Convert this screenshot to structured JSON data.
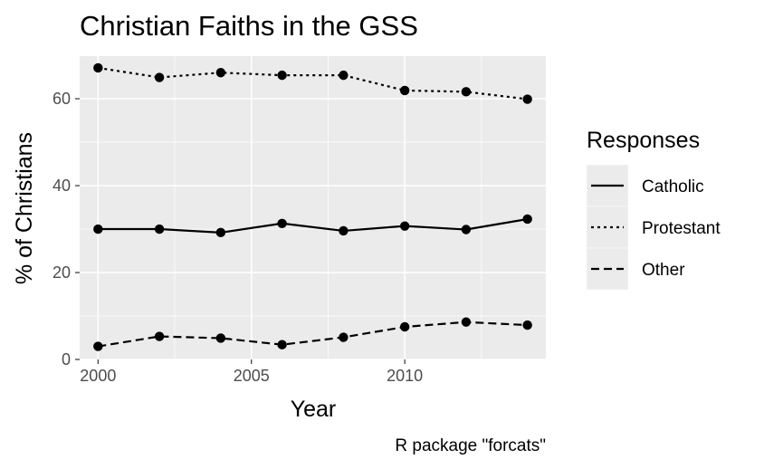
{
  "chart_data": {
    "type": "line",
    "title": "Christian Faiths in the GSS",
    "xlabel": "Year",
    "ylabel": "% of Christians",
    "caption": "R package \"forcats\"",
    "x": [
      2000,
      2002,
      2004,
      2006,
      2008,
      2010,
      2012,
      2014
    ],
    "xlim": [
      1999.4,
      2014.6
    ],
    "ylim": [
      0,
      69.8
    ],
    "x_ticks": [
      2000,
      2005,
      2010
    ],
    "x_minor": [
      2002.5,
      2007.5,
      2012.5
    ],
    "y_ticks": [
      0,
      20,
      40,
      60
    ],
    "y_minor": [
      10,
      30,
      50
    ],
    "grid": true,
    "legend": {
      "title": "Responses",
      "position": "right"
    },
    "series": [
      {
        "name": "Catholic",
        "linestyle": "solid",
        "values": [
          30.0,
          30.0,
          29.2,
          31.3,
          29.6,
          30.7,
          29.9,
          32.3
        ]
      },
      {
        "name": "Protestant",
        "linestyle": "dotted",
        "values": [
          67.1,
          64.9,
          66.0,
          65.4,
          65.4,
          61.9,
          61.6,
          59.9
        ]
      },
      {
        "name": "Other",
        "linestyle": "dashed",
        "values": [
          3.0,
          5.3,
          4.9,
          3.4,
          5.1,
          7.5,
          8.6,
          7.9
        ]
      }
    ],
    "colors": {
      "panel": "#ebebeb",
      "grid": "#ffffff",
      "line": "#000000",
      "tick_text": "#4d4d4d"
    }
  }
}
